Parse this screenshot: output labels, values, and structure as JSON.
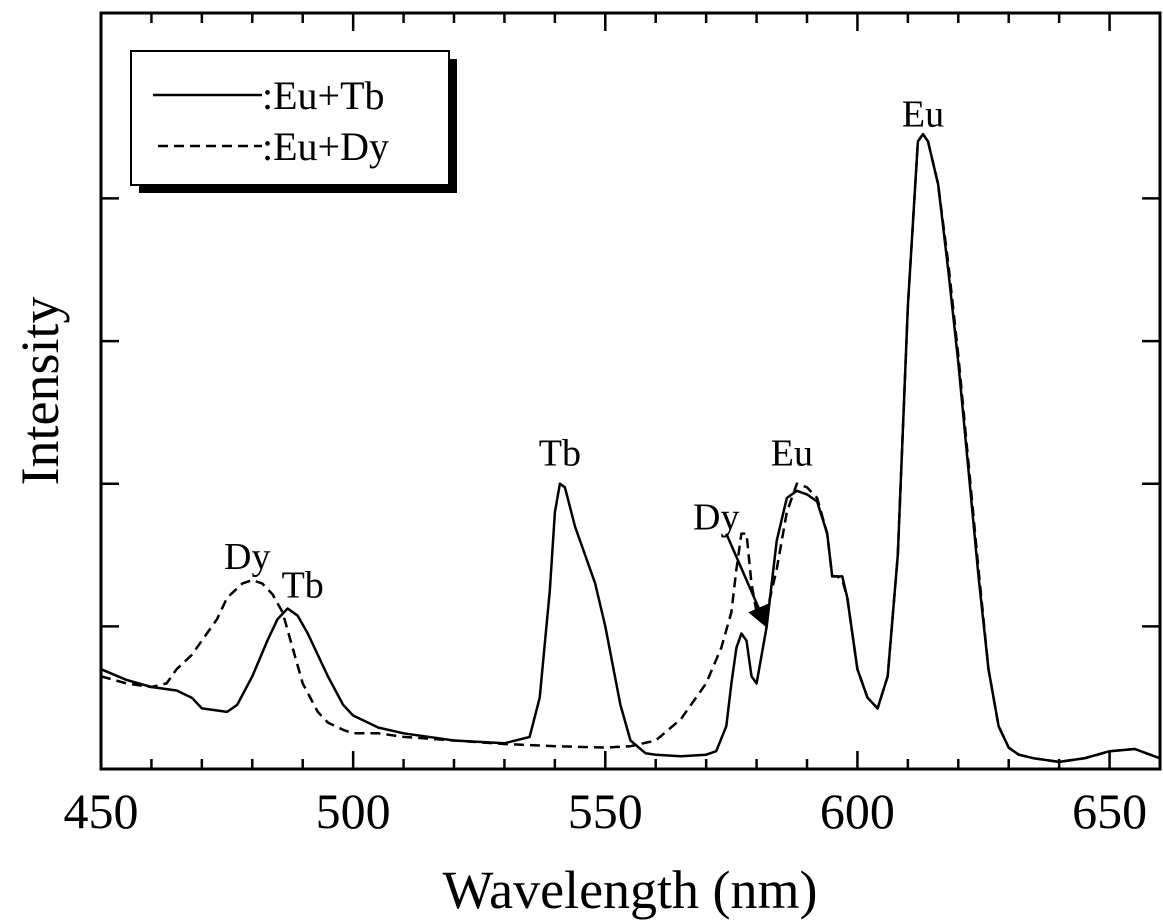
{
  "chart_data": {
    "type": "line",
    "title": "",
    "xlabel": "Wavelength (nm)",
    "ylabel": "Intensity",
    "xlim": [
      450,
      660
    ],
    "ylim": [
      0,
      1.06
    ],
    "x_ticks": [
      450,
      500,
      550,
      600,
      650
    ],
    "x_tick_labels": [
      "450",
      "500",
      "550",
      "600",
      "650"
    ],
    "x_minor_step": 10,
    "y_ticks": [
      0.2,
      0.4,
      0.6,
      0.8
    ],
    "y_tick_labels_shown": false,
    "grid": false,
    "legend_placement": "top-left",
    "series": [
      {
        "name": ":Eu+Tb",
        "dash": "solid",
        "x": [
          450,
          455,
          460,
          465,
          468,
          470,
          475,
          477,
          480,
          483,
          485,
          487,
          489,
          491,
          493,
          495,
          498,
          500,
          505,
          510,
          520,
          530,
          535,
          537,
          539,
          540,
          541,
          542,
          544,
          546,
          548,
          550,
          553,
          555,
          558,
          560,
          565,
          570,
          572,
          574,
          575,
          576,
          577,
          578,
          579,
          580,
          582,
          584,
          586,
          588,
          590,
          592,
          594,
          595,
          596,
          597,
          598,
          600,
          602,
          604,
          606,
          608,
          610,
          612,
          613,
          614,
          616,
          618,
          620,
          622,
          624,
          626,
          628,
          630,
          632,
          635,
          640,
          645,
          650,
          655,
          660
        ],
        "y": [
          0.14,
          0.125,
          0.115,
          0.11,
          0.1,
          0.085,
          0.08,
          0.09,
          0.13,
          0.18,
          0.21,
          0.225,
          0.215,
          0.19,
          0.16,
          0.13,
          0.09,
          0.075,
          0.058,
          0.05,
          0.04,
          0.036,
          0.045,
          0.1,
          0.25,
          0.36,
          0.4,
          0.395,
          0.34,
          0.3,
          0.26,
          0.2,
          0.09,
          0.04,
          0.022,
          0.02,
          0.018,
          0.02,
          0.025,
          0.06,
          0.12,
          0.17,
          0.19,
          0.18,
          0.13,
          0.12,
          0.2,
          0.32,
          0.38,
          0.39,
          0.385,
          0.375,
          0.33,
          0.27,
          0.27,
          0.27,
          0.24,
          0.14,
          0.1,
          0.085,
          0.13,
          0.3,
          0.65,
          0.88,
          0.89,
          0.88,
          0.82,
          0.7,
          0.57,
          0.42,
          0.27,
          0.14,
          0.06,
          0.03,
          0.02,
          0.015,
          0.01,
          0.015,
          0.025,
          0.028,
          0.015
        ]
      },
      {
        "name": ":Eu+Dy",
        "dash": "dashed",
        "x": [
          450,
          455,
          460,
          463,
          465,
          468,
          470,
          473,
          475,
          478,
          480,
          482,
          484,
          486,
          488,
          490,
          493,
          495,
          498,
          500,
          505,
          510,
          520,
          530,
          540,
          550,
          555,
          560,
          565,
          570,
          573,
          575,
          576,
          577,
          578,
          579,
          580,
          582,
          584,
          586,
          588,
          590,
          592,
          594,
          595,
          596,
          597,
          598,
          600,
          602,
          604,
          606,
          608,
          610,
          612,
          613,
          614,
          616,
          618,
          620,
          622,
          624,
          626,
          628,
          630,
          632,
          635,
          640,
          645,
          650,
          655,
          660
        ],
        "y": [
          0.13,
          0.12,
          0.115,
          0.12,
          0.14,
          0.16,
          0.18,
          0.21,
          0.24,
          0.26,
          0.265,
          0.26,
          0.245,
          0.22,
          0.17,
          0.12,
          0.08,
          0.065,
          0.055,
          0.05,
          0.05,
          0.045,
          0.04,
          0.035,
          0.032,
          0.03,
          0.032,
          0.04,
          0.07,
          0.12,
          0.17,
          0.22,
          0.28,
          0.33,
          0.33,
          0.26,
          0.22,
          0.22,
          0.28,
          0.36,
          0.4,
          0.395,
          0.38,
          0.33,
          0.27,
          0.27,
          0.265,
          0.24,
          0.14,
          0.1,
          0.085,
          0.13,
          0.3,
          0.65,
          0.88,
          0.89,
          0.88,
          0.82,
          0.71,
          0.58,
          0.43,
          0.28,
          0.14,
          0.06,
          0.03,
          0.02,
          0.015,
          0.01,
          0.015,
          0.025,
          0.028,
          0.015
        ]
      }
    ],
    "annotations": [
      {
        "text": "Eu",
        "x": 613,
        "y": 0.895,
        "anchor": "bottom"
      },
      {
        "text": "Tb",
        "x": 541,
        "y": 0.42,
        "anchor": "bottom"
      },
      {
        "text": "Eu",
        "x": 587,
        "y": 0.42,
        "anchor": "bottom"
      },
      {
        "text": "Dy",
        "x": 572,
        "y": 0.33,
        "anchor": "bottom"
      },
      {
        "text": "Dy",
        "x": 479,
        "y": 0.275,
        "anchor": "bottom"
      },
      {
        "text": "Tb",
        "x": 490,
        "y": 0.235,
        "anchor": "bottom"
      }
    ],
    "arrows": [
      {
        "from": [
          574,
          0.33
        ],
        "to": [
          582,
          0.2
        ]
      }
    ]
  }
}
